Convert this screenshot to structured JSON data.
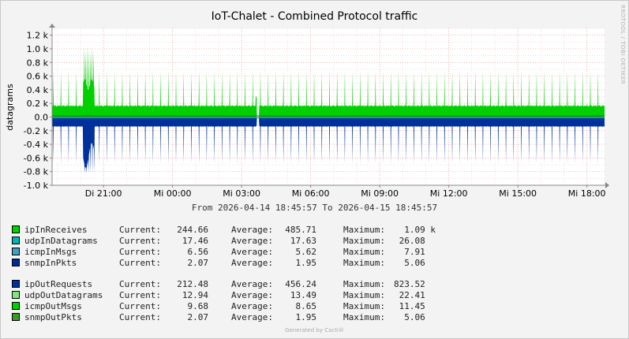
{
  "title": "IoT-Chalet - Combined Protocol traffic",
  "watermark": "RRDTOOL / TOBI OETIKER",
  "timespan": "From 2026-04-14 18:45:57 To 2026-04-15 18:45:57",
  "footer": "Generated by Cacti®",
  "colors": {
    "ipInReceives": "#00cf00",
    "udpInDatagrams": "#00b4b4",
    "icmpInMsgs": "#3fa0c0",
    "snmpInPkts": "#002a97",
    "ipOutRequests": "#00309c",
    "udpOutDatagrams": "#7fe77f",
    "icmpOutMsgs": "#00d000",
    "snmpOutPkts": "#3a9a28"
  },
  "legend_in": [
    {
      "name": "ipInReceives",
      "cur_label": "Current:",
      "cur": "244.66",
      "avg_label": "Average:",
      "avg": "485.71",
      "max_label": "Maximum:",
      "max": "  1.09 k",
      "color_key": "ipInReceives"
    },
    {
      "name": "udpInDatagrams",
      "cur_label": "Current:",
      "cur": "17.46",
      "avg_label": "Average:",
      "avg": "17.63",
      "max_label": "Maximum:",
      "max": " 26.08",
      "color_key": "udpInDatagrams"
    },
    {
      "name": "icmpInMsgs",
      "cur_label": "Current:",
      "cur": "6.56",
      "avg_label": "Average:",
      "avg": "5.62",
      "max_label": "Maximum:",
      "max": "  7.91",
      "color_key": "icmpInMsgs"
    },
    {
      "name": "snmpInPkts",
      "cur_label": "Current:",
      "cur": "2.07",
      "avg_label": "Average:",
      "avg": "1.95",
      "max_label": "Maximum:",
      "max": "  5.06",
      "color_key": "snmpInPkts"
    }
  ],
  "legend_out": [
    {
      "name": "ipOutRequests",
      "cur_label": "Current:",
      "cur": "212.48",
      "avg_label": "Average:",
      "avg": "456.24",
      "max_label": "Maximum:",
      "max": "823.52",
      "color_key": "ipOutRequests"
    },
    {
      "name": "udpOutDatagrams",
      "cur_label": "Current:",
      "cur": "12.94",
      "avg_label": "Average:",
      "avg": "13.49",
      "max_label": "Maximum:",
      "max": " 22.41",
      "color_key": "udpOutDatagrams"
    },
    {
      "name": "icmpOutMsgs",
      "cur_label": "Current:",
      "cur": "9.68",
      "avg_label": "Average:",
      "avg": "8.65",
      "max_label": "Maximum:",
      "max": " 11.45",
      "color_key": "icmpOutMsgs"
    },
    {
      "name": "snmpOutPkts",
      "cur_label": "Current:",
      "cur": "2.07",
      "avg_label": "Average:",
      "avg": "1.95",
      "max_label": "Maximum:",
      "max": "  5.06",
      "color_key": "snmpOutPkts"
    }
  ],
  "chart_data": {
    "type": "area",
    "title": "IoT-Chalet - Combined Protocol traffic",
    "ylabel": "datagrams",
    "xlabel": "",
    "ylim": [
      -1000,
      1300
    ],
    "yticks": [
      {
        "v": 1200,
        "label": "1.2 k"
      },
      {
        "v": 1000,
        "label": "1.0 k"
      },
      {
        "v": 800,
        "label": "0.8 k"
      },
      {
        "v": 600,
        "label": "0.6 k"
      },
      {
        "v": 400,
        "label": "0.4 k"
      },
      {
        "v": 200,
        "label": "0.2 k"
      },
      {
        "v": 0,
        "label": "0.0"
      },
      {
        "v": -200,
        "label": "-0.2 k"
      },
      {
        "v": -400,
        "label": "-0.4 k"
      },
      {
        "v": -600,
        "label": "-0.6 k"
      },
      {
        "v": -800,
        "label": "-0.8 k"
      },
      {
        "v": -1000,
        "label": "-1.0 k"
      }
    ],
    "x_range_hours": [
      18.7658,
      42.7658
    ],
    "xticks": [
      {
        "h": 21,
        "label": "Di 21:00"
      },
      {
        "h": 24,
        "label": "Mi 00:00"
      },
      {
        "h": 27,
        "label": "Mi 03:00"
      },
      {
        "h": 30,
        "label": "Mi 06:00"
      },
      {
        "h": 33,
        "label": "Mi 09:00"
      },
      {
        "h": 36,
        "label": "Mi 12:00"
      },
      {
        "h": 39,
        "label": "Mi 15:00"
      },
      {
        "h": 42,
        "label": "Mi 18:00"
      }
    ],
    "grid": true,
    "series": [
      {
        "name": "ipInReceives",
        "baseline": 150,
        "spike": 700,
        "period_min": 20,
        "max": 1090
      },
      {
        "name": "ipOutRequests",
        "baseline": -130,
        "spike": -710,
        "period_min": 20,
        "max": 823.52
      }
    ]
  }
}
